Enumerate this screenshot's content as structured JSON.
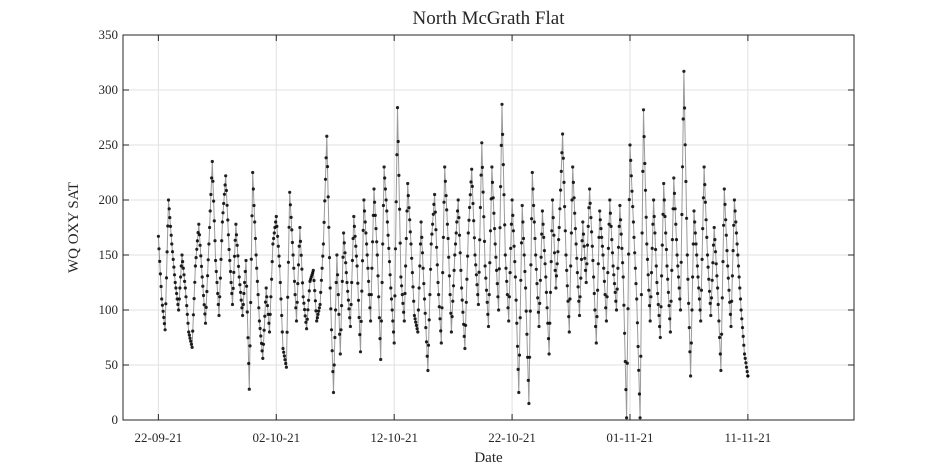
{
  "chart_data": {
    "type": "scatter",
    "title": "North McGrath Flat",
    "xlabel": "Date",
    "ylabel": "WQ OXY SAT",
    "ylim": [
      0,
      350
    ],
    "yticks": [
      0,
      50,
      100,
      150,
      200,
      250,
      300,
      350
    ],
    "xlim": [
      "2021-09-19",
      "2021-11-20"
    ],
    "xticks": [
      {
        "date": "2021-09-22",
        "label": "22-09-21"
      },
      {
        "date": "2021-10-02",
        "label": "02-10-21"
      },
      {
        "date": "2021-10-12",
        "label": "12-10-21"
      },
      {
        "date": "2021-10-22",
        "label": "22-10-21"
      },
      {
        "date": "2021-11-01",
        "label": "01-11-21"
      },
      {
        "date": "2021-11-11",
        "label": "11-11-21"
      }
    ],
    "grid": true,
    "series": [
      {
        "color": "#000000",
        "line_color": "#9a9a9a",
        "x_start": "2021-09-22",
        "x_end": "2021-11-11",
        "y": [
          167,
          110,
          82,
          200,
          160,
          125,
          100,
          150,
          120,
          80,
          66,
          140,
          178,
          130,
          88,
          160,
          235,
          145,
          95,
          180,
          222,
          155,
          105,
          178,
          130,
          95,
          145,
          28,
          225,
          150,
          90,
          56,
          120,
          80,
          160,
          185,
          140,
          65,
          48,
          207,
          150,
          90,
          175,
          112,
          83,
          126,
          136,
          90,
          105,
          160,
          258,
          120,
          25,
          150,
          60,
          170,
          125,
          85,
          185,
          140,
          62,
          200,
          150,
          90,
          210,
          150,
          55,
          230,
          180,
          120,
          70,
          284,
          130,
          90,
          215,
          160,
          95,
          80,
          180,
          110,
          45,
          160,
          205,
          125,
          70,
          230,
          165,
          80,
          150,
          200,
          120,
          65,
          170,
          228,
          150,
          105,
          252,
          140,
          85,
          230,
          160,
          100,
          287,
          150,
          90,
          200,
          130,
          25,
          195,
          120,
          15,
          225,
          150,
          85,
          190,
          130,
          60,
          200,
          120,
          175,
          260,
          150,
          80,
          230,
          160,
          95,
          180,
          125,
          210,
          145,
          70,
          190,
          150,
          90,
          200,
          140,
          100,
          195,
          130,
          2,
          250,
          180,
          110,
          2,
          282,
          160,
          90,
          200,
          125,
          75,
          215,
          140,
          80,
          220,
          150,
          100,
          317,
          150,
          40,
          190,
          140,
          90,
          230,
          150,
          95,
          175,
          120,
          45,
          210,
          140,
          85,
          200,
          150,
          100,
          60,
          40
        ]
      }
    ]
  }
}
